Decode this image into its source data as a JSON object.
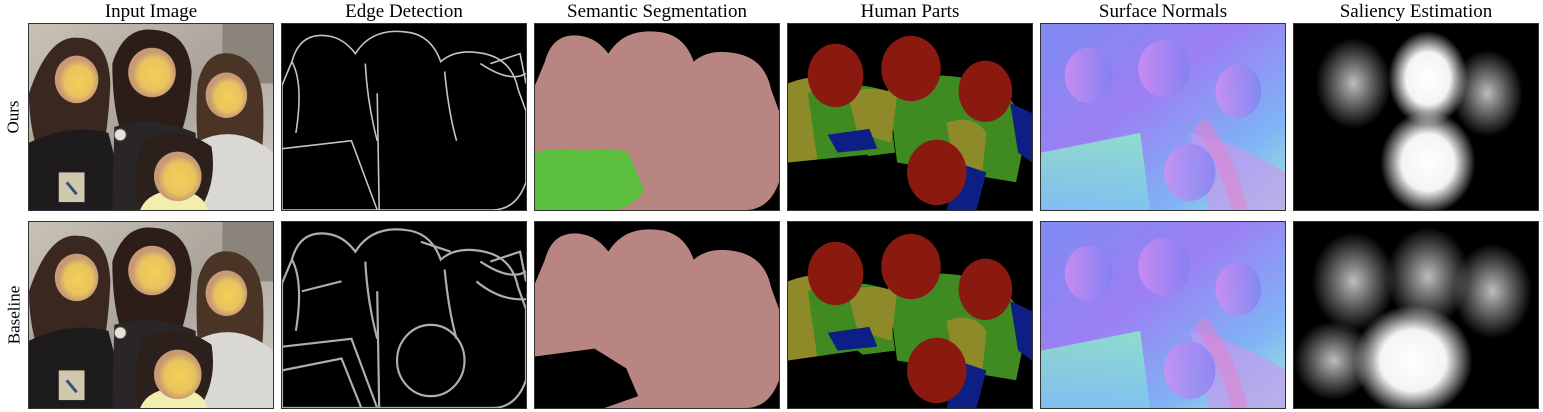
{
  "columns": [
    {
      "title": "Input Image",
      "kind": "input"
    },
    {
      "title": "Edge Detection",
      "kind": "edge"
    },
    {
      "title": "Semantic Segmentation",
      "kind": "semseg"
    },
    {
      "title": "Human Parts",
      "kind": "parts"
    },
    {
      "title": "Surface Normals",
      "kind": "normals"
    },
    {
      "title": "Saliency Estimation",
      "kind": "saliency"
    }
  ],
  "rows": [
    {
      "label": "Ours"
    },
    {
      "label": "Baseline"
    }
  ],
  "colors": {
    "person": "#b88583",
    "sofa": "#5bbe3c",
    "head": "#8a1a0f",
    "torso": "#3f8a21",
    "arm": "#8e8a2a",
    "leg": "#0d1f84",
    "background": "#000000"
  }
}
